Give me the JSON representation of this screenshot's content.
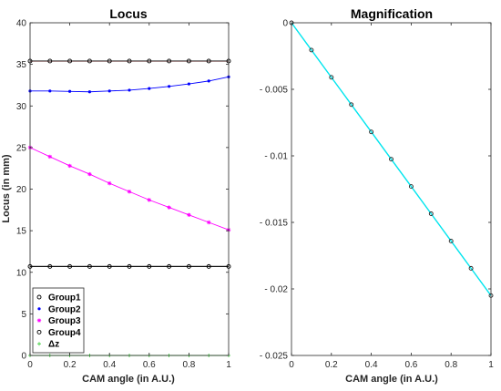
{
  "chart_data": [
    {
      "type": "line",
      "title": "Locus",
      "xlabel": "CAM angle (in A.U.)",
      "ylabel": "Locus (in mm)",
      "xlim": [
        0,
        1
      ],
      "ylim": [
        0,
        40
      ],
      "xticks": [
        0,
        0.2,
        0.4,
        0.6,
        0.8,
        1
      ],
      "xtick_labels": [
        "0",
        "0.2",
        "0.4",
        "0.6",
        "0.8",
        "1"
      ],
      "yticks": [
        0,
        5,
        10,
        15,
        20,
        25,
        30,
        35,
        40
      ],
      "ytick_labels": [
        "0",
        "5",
        "10",
        "15",
        "20",
        "25",
        "30",
        "35",
        "40"
      ],
      "grid": false,
      "legend_position": "bottom-left",
      "x": [
        0,
        0.1,
        0.2,
        0.3,
        0.4,
        0.5,
        0.6,
        0.7,
        0.8,
        0.9,
        1
      ],
      "series": [
        {
          "name": "Group1",
          "color": "#000000",
          "marker": "circle",
          "values": [
            35.4,
            35.4,
            35.4,
            35.4,
            35.4,
            35.4,
            35.4,
            35.4,
            35.4,
            35.4,
            35.4
          ]
        },
        {
          "name": "Group2",
          "color": "#0000ff",
          "marker": "dot",
          "values": [
            31.8,
            31.8,
            31.75,
            31.7,
            31.8,
            31.9,
            32.1,
            32.35,
            32.65,
            33.0,
            33.5
          ]
        },
        {
          "name": "Group3",
          "color": "#ff00ff",
          "marker": "star",
          "values": [
            25.0,
            23.9,
            22.8,
            21.8,
            20.7,
            19.7,
            18.7,
            17.8,
            16.9,
            16.0,
            15.1
          ]
        },
        {
          "name": "Group4",
          "color": "#000000",
          "marker": "circle",
          "values": [
            10.7,
            10.7,
            10.7,
            10.7,
            10.7,
            10.7,
            10.7,
            10.7,
            10.7,
            10.7,
            10.7
          ]
        },
        {
          "name": "Δz",
          "color": "#33cc33",
          "marker": "plus",
          "values": [
            0,
            0,
            0,
            0,
            0,
            0,
            0,
            0,
            0,
            0,
            0
          ]
        }
      ],
      "reference_lines": [
        {
          "color": "#ff0000",
          "y": 35.4
        },
        {
          "color": "#000000",
          "y": 10.7
        }
      ]
    },
    {
      "type": "line",
      "title": "Magnification",
      "xlabel": "CAM angle (in A.U.)",
      "ylabel": "",
      "xlim": [
        0,
        1
      ],
      "ylim": [
        -0.025,
        0
      ],
      "xticks": [
        0,
        0.2,
        0.4,
        0.6,
        0.8,
        1
      ],
      "xtick_labels": [
        "0",
        "0.2",
        "0.4",
        "0.6",
        "0.8",
        "1"
      ],
      "yticks": [
        0,
        -0.005,
        -0.01,
        -0.015,
        -0.02,
        -0.025
      ],
      "ytick_labels": [
        "0",
        "- 0.005",
        "- 0.01",
        "- 0.015",
        "- 0.02",
        "- 0.025"
      ],
      "grid": false,
      "x": [
        0,
        0.1,
        0.2,
        0.3,
        0.4,
        0.5,
        0.6,
        0.7,
        0.8,
        0.9,
        1
      ],
      "series": [
        {
          "color": "#00e5ee",
          "marker": "circle",
          "values": [
            0,
            -0.00205,
            -0.0041,
            -0.00615,
            -0.0082,
            -0.01025,
            -0.0123,
            -0.01435,
            -0.0164,
            -0.01845,
            -0.0205
          ]
        }
      ]
    }
  ]
}
